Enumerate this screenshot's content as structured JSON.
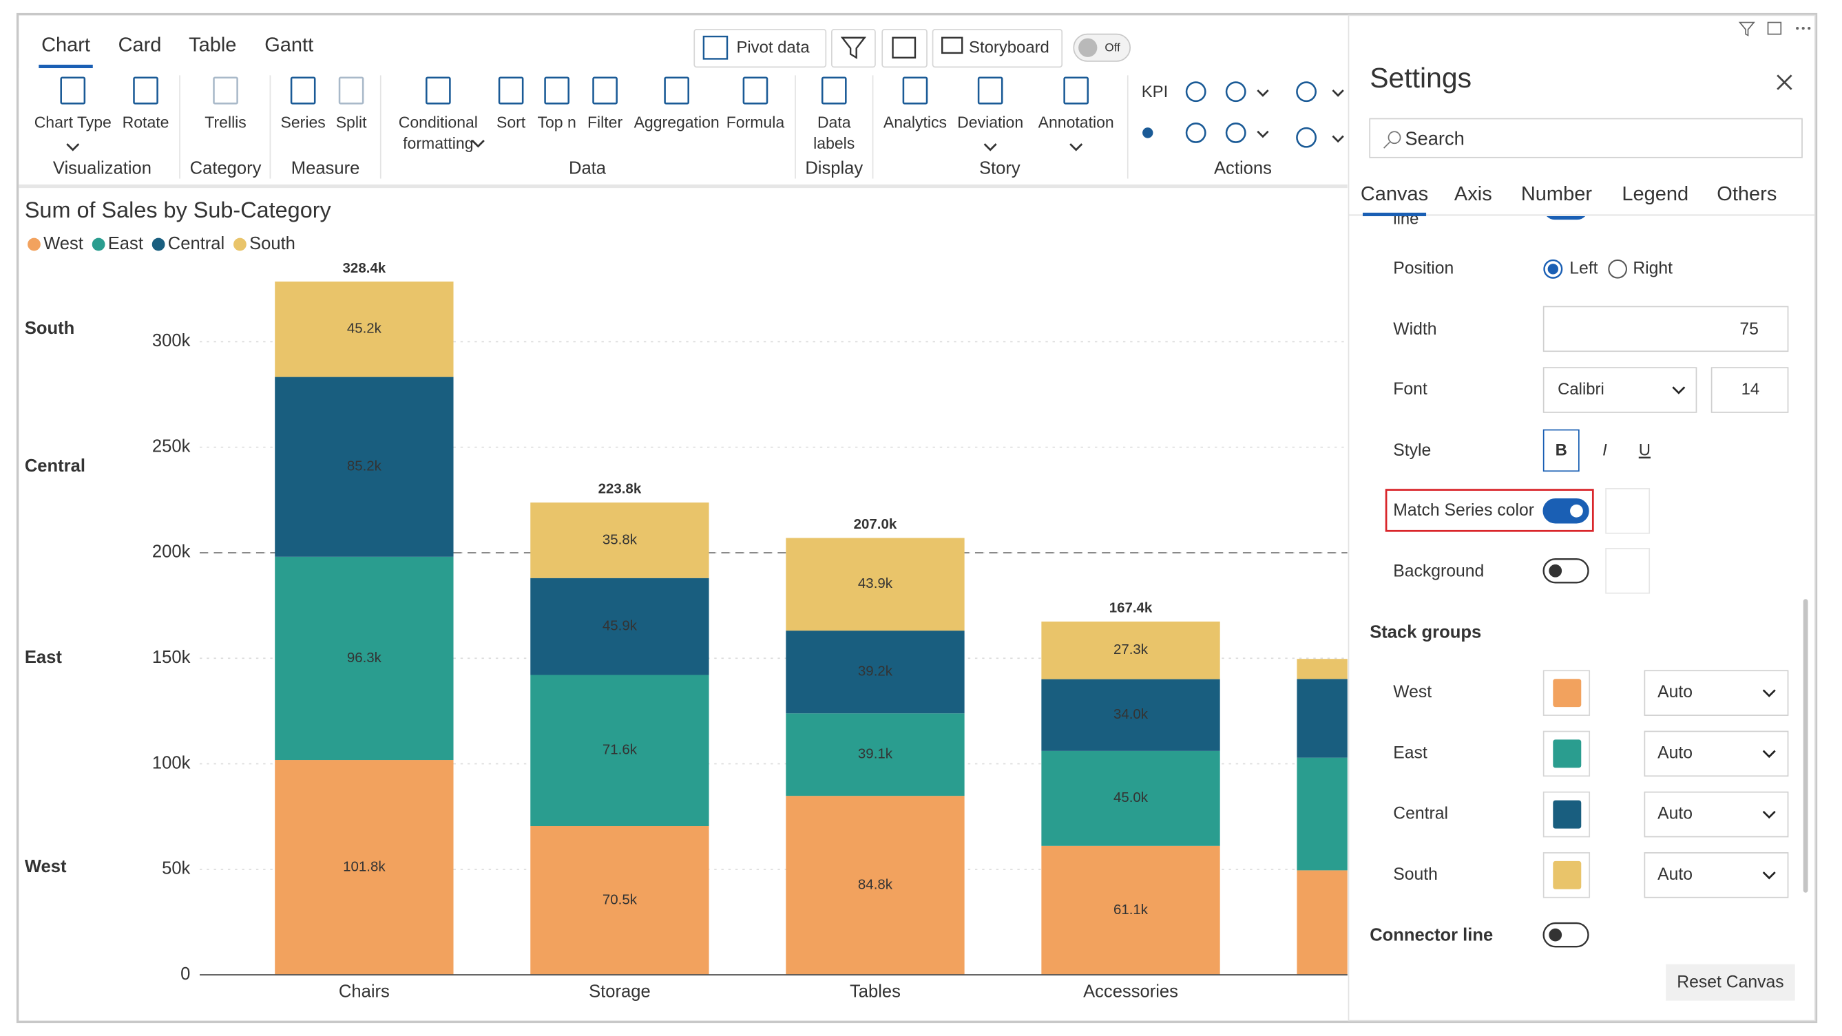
{
  "toolbar": {
    "tabs": [
      "Chart",
      "Card",
      "Table",
      "Gantt"
    ],
    "buttons": [
      "Pivot data",
      "Storyboard"
    ],
    "toggle": "Off",
    "items": [
      [
        "Chart Type"
      ],
      [
        "Rotate"
      ],
      [
        "Trellis"
      ],
      [
        "Series"
      ],
      [
        "Split"
      ],
      [
        "Conditional",
        "formatting"
      ],
      [
        "Sort"
      ],
      [
        "Top n"
      ],
      [
        "Filter"
      ],
      [
        "Aggregation"
      ],
      [
        "Formula"
      ],
      [
        "Data",
        "labels"
      ],
      [
        "Analytics"
      ],
      [
        "Deviation"
      ],
      [
        "Annotation"
      ]
    ],
    "kpi": "KPI",
    "groups": [
      "Visualization",
      "Category",
      "Measure",
      "Data",
      "Display",
      "Story",
      "Actions"
    ]
  },
  "chart_data": {
    "type": "stacked_bar",
    "title": "Sum of Sales by Sub-Category",
    "categories": [
      "Chairs",
      "Storage",
      "Tables",
      "Accessories",
      null
    ],
    "series": [
      {
        "name": "West",
        "color": "#F2A25E",
        "label_color": "#222222",
        "values": [
          101800,
          70500,
          84800,
          61100,
          49500
        ],
        "value_labels": [
          "101.8k",
          "70.5k",
          "84.8k",
          "61.1k",
          null
        ]
      },
      {
        "name": "East",
        "color": "#2A9D8F",
        "label_color": "#222222",
        "values": [
          96300,
          71600,
          39100,
          45000,
          53400
        ],
        "value_labels": [
          "96.3k",
          "71.6k",
          "39.1k",
          "45.0k",
          null
        ]
      },
      {
        "name": "Central",
        "color": "#195E7F",
        "label_color": "#ffffff",
        "values": [
          85200,
          45900,
          39200,
          34000,
          37300
        ],
        "value_labels": [
          "85.2k",
          "45.9k",
          "39.2k",
          "34.0k",
          null
        ]
      },
      {
        "name": "South",
        "color": "#E9C46A",
        "label_color": "#222222",
        "values": [
          45200,
          35800,
          43900,
          27300,
          9500
        ],
        "value_labels": [
          "45.2k",
          "35.8k",
          "43.9k",
          "27.3k",
          null
        ]
      }
    ],
    "totals": {
      "values": [
        328400,
        223800,
        207000,
        167400,
        null
      ],
      "value_labels": [
        "328.4k",
        "223.8k",
        "207.0k",
        "167.4k",
        null
      ]
    },
    "ylim": [
      0,
      340000
    ],
    "yticks": [
      0,
      {
        "value": 50000,
        "label": "50k"
      },
      {
        "value": 100000,
        "label": "100k"
      },
      {
        "value": 150000,
        "label": "150k"
      },
      {
        "value": 200000,
        "label": "200k"
      },
      {
        "value": 250000,
        "label": "250k"
      },
      {
        "value": 300000,
        "label": "300k"
      }
    ],
    "reference_line": 200000,
    "grid": true
  },
  "settings": {
    "title": "Settings",
    "search": "Search",
    "tabs": [
      "Canvas",
      "Axis",
      "Number",
      "Legend",
      "Others"
    ],
    "partial": "line",
    "position": {
      "label": "Position",
      "options": [
        "Left",
        "Right"
      ]
    },
    "width": {
      "label": "Width",
      "value": 75
    },
    "font": {
      "label": "Font",
      "family": "Calibri",
      "size": 14
    },
    "style": {
      "label": "Style",
      "options": [
        "B",
        "I",
        "U"
      ]
    },
    "match_series_color": {
      "label": "Match Series color",
      "on": true
    },
    "background": {
      "label": "Background",
      "on": false
    },
    "stack_groups": {
      "title": "Stack groups",
      "items": [
        {
          "name": "West",
          "color": "#F2A25E",
          "mode": "Auto"
        },
        {
          "name": "East",
          "color": "#2A9D8F",
          "mode": "Auto"
        },
        {
          "name": "Central",
          "color": "#195E7F",
          "mode": "Auto"
        },
        {
          "name": "South",
          "color": "#E9C46A",
          "mode": "Auto"
        }
      ]
    },
    "connector_line": {
      "label": "Connector line",
      "on": false
    },
    "reset": "Reset Canvas"
  }
}
